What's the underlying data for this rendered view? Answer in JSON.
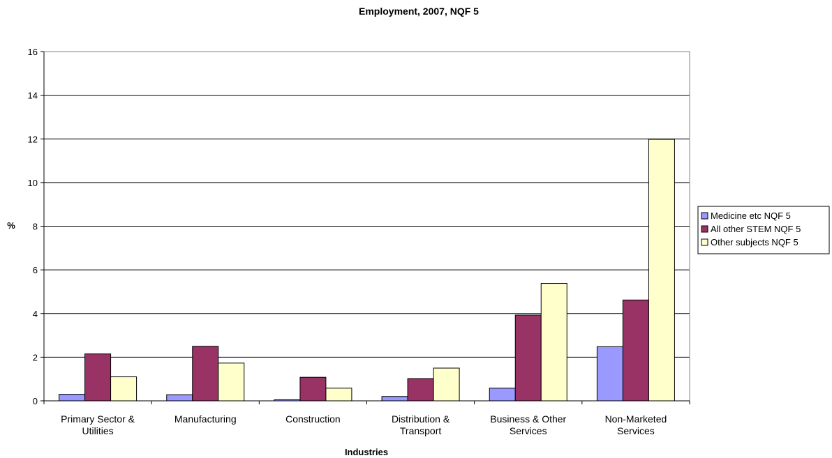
{
  "chart_data": {
    "type": "bar",
    "title": "Employment, 2007, NQF 5",
    "xlabel": "Industries",
    "ylabel": "%",
    "ylim": [
      0,
      16
    ],
    "yticks": [
      0,
      2,
      4,
      6,
      8,
      10,
      12,
      14,
      16
    ],
    "grid": true,
    "legend_position": "right",
    "categories": [
      [
        "Primary Sector &",
        "Utilities"
      ],
      [
        "Manufacturing"
      ],
      [
        "Construction"
      ],
      [
        "Distribution &",
        "Transport"
      ],
      [
        "Business & Other",
        "Services"
      ],
      [
        "Non-Marketed",
        "Services"
      ]
    ],
    "series": [
      {
        "name": "Medicine etc NQF 5",
        "color": "#9999ff",
        "values": [
          0.3,
          0.28,
          0.05,
          0.2,
          0.58,
          2.48
        ]
      },
      {
        "name": "All other STEM NQF 5",
        "color": "#993366",
        "values": [
          2.15,
          2.5,
          1.08,
          1.02,
          3.93,
          4.62
        ]
      },
      {
        "name": "Other subjects NQF 5",
        "color": "#ffffcc",
        "values": [
          1.1,
          1.73,
          0.58,
          1.5,
          5.38,
          11.98
        ]
      }
    ]
  }
}
